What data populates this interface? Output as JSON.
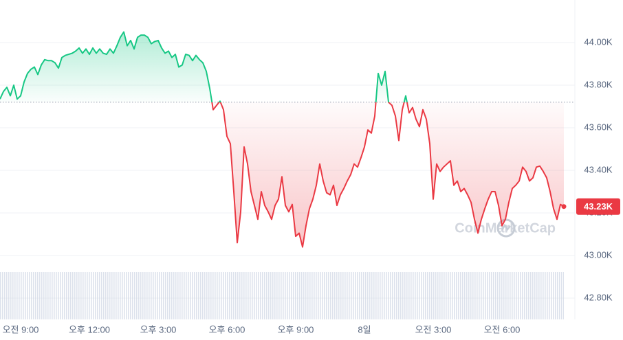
{
  "chart_data": {
    "type": "line",
    "x": [
      -54,
      -45,
      -36,
      -27,
      -18,
      -9,
      0,
      9,
      18,
      27,
      36,
      45,
      54,
      63,
      72,
      81,
      90,
      99,
      108,
      117,
      126,
      135,
      144,
      153,
      162,
      171,
      180,
      189,
      198,
      207,
      216,
      225,
      234,
      243,
      252,
      261,
      270,
      279,
      288,
      297,
      306,
      315,
      324,
      333,
      342,
      351,
      360,
      369,
      378,
      387,
      396,
      405,
      414,
      423,
      432,
      441,
      450,
      459,
      468,
      477,
      486,
      495,
      504,
      513,
      522,
      531,
      540,
      549,
      558,
      567,
      576,
      585,
      594,
      603,
      612,
      621,
      630,
      639,
      648,
      657,
      666,
      675,
      684,
      693,
      702,
      711,
      720,
      729,
      738,
      747,
      756,
      765,
      774,
      783,
      792,
      801,
      810,
      819,
      828,
      837,
      846,
      855,
      864,
      873,
      882,
      891,
      900,
      909,
      918,
      927,
      936,
      945,
      954,
      963,
      972,
      981,
      990,
      999,
      1008,
      1017,
      1026,
      1035,
      1044,
      1053,
      1062,
      1071,
      1080,
      1089,
      1098,
      1107,
      1116,
      1125,
      1134,
      1143,
      1152,
      1161,
      1170,
      1179,
      1188,
      1197,
      1206,
      1215,
      1224,
      1233,
      1242,
      1251,
      1260,
      1269,
      1278,
      1287,
      1296,
      1305,
      1314,
      1323,
      1332,
      1341,
      1350,
      1359,
      1368,
      1377,
      1386,
      1395,
      1404,
      1413,
      1422
    ],
    "values": [
      43735,
      43770,
      43790,
      43750,
      43800,
      43735,
      43750,
      43815,
      43855,
      43875,
      43885,
      43850,
      43895,
      43920,
      43915,
      43915,
      43905,
      43880,
      43930,
      43940,
      43945,
      43950,
      43960,
      43975,
      43950,
      43970,
      43945,
      43975,
      43950,
      43970,
      43950,
      43945,
      43970,
      43950,
      43985,
      44025,
      44050,
      43985,
      44010,
      43970,
      44025,
      44035,
      44035,
      44025,
      43995,
      44005,
      44010,
      43975,
      43950,
      43960,
      43930,
      43945,
      43885,
      43895,
      43945,
      43940,
      43915,
      43940,
      43920,
      43905,
      43865,
      43785,
      43685,
      43705,
      43725,
      43685,
      43560,
      43525,
      43300,
      43060,
      43205,
      43510,
      43430,
      43300,
      43235,
      43170,
      43300,
      43235,
      43205,
      43170,
      43235,
      43265,
      43370,
      43235,
      43205,
      43240,
      43090,
      43105,
      43040,
      43140,
      43220,
      43265,
      43330,
      43430,
      43350,
      43295,
      43285,
      43330,
      43235,
      43285,
      43315,
      43350,
      43380,
      43430,
      43415,
      43460,
      43510,
      43590,
      43575,
      43655,
      43855,
      43800,
      43865,
      43720,
      43705,
      43655,
      43540,
      43685,
      43750,
      43670,
      43695,
      43640,
      43605,
      43685,
      43640,
      43525,
      43265,
      43430,
      43395,
      43415,
      43430,
      43445,
      43330,
      43350,
      43300,
      43315,
      43285,
      43250,
      43170,
      43105,
      43170,
      43220,
      43265,
      43300,
      43300,
      43235,
      43140,
      43170,
      43250,
      43315,
      43330,
      43350,
      43415,
      43395,
      43350,
      43365,
      43415,
      43420,
      43395,
      43365,
      43300,
      43220,
      43170,
      43240,
      43230
    ],
    "reference_value": 43720,
    "up_color": "#16c784",
    "down_color": "#ea3943",
    "xlim": [
      -54,
      1422
    ],
    "xticks": [
      {
        "value": 0,
        "label": "오전 9:00"
      },
      {
        "value": 180,
        "label": "오후 12:00"
      },
      {
        "value": 360,
        "label": "오후 3:00"
      },
      {
        "value": 540,
        "label": "오후 6:00"
      },
      {
        "value": 720,
        "label": "오후 9:00"
      },
      {
        "value": 900,
        "label": "8일"
      },
      {
        "value": 1080,
        "label": "오전 3:00"
      },
      {
        "value": 1260,
        "label": "오전 6:00"
      }
    ],
    "ylim": [
      42700,
      44200
    ],
    "yticks": [
      {
        "value": 42800,
        "label": "42.80K"
      },
      {
        "value": 43000,
        "label": "43.00K"
      },
      {
        "value": 43200,
        "label": "43.20K"
      },
      {
        "value": 43400,
        "label": "43.40K"
      },
      {
        "value": 43600,
        "label": "43.60K"
      },
      {
        "value": 43800,
        "label": "43.80K"
      },
      {
        "value": 44000,
        "label": "44.00K"
      }
    ],
    "grid": true,
    "last_price_label": "43.23K",
    "watermark": "CoinMarketCap"
  }
}
